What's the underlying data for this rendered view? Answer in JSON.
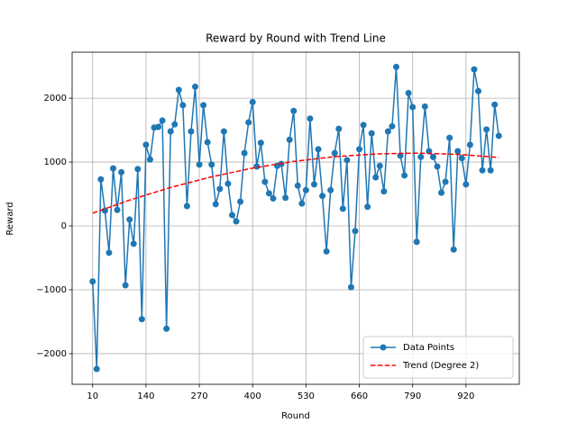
{
  "chart_data": {
    "type": "line",
    "title": "Reward by Round with Trend Line",
    "x_label": "Round",
    "y_label": "Reward",
    "x": [
      10,
      20,
      30,
      40,
      50,
      60,
      70,
      80,
      90,
      100,
      110,
      120,
      130,
      140,
      150,
      160,
      170,
      180,
      190,
      200,
      210,
      220,
      230,
      240,
      250,
      260,
      270,
      280,
      290,
      300,
      310,
      320,
      330,
      340,
      350,
      360,
      370,
      380,
      390,
      400,
      410,
      420,
      430,
      440,
      450,
      460,
      470,
      480,
      490,
      500,
      510,
      520,
      530,
      540,
      550,
      560,
      570,
      580,
      590,
      600,
      610,
      620,
      630,
      640,
      650,
      660,
      670,
      680,
      690,
      700,
      710,
      720,
      730,
      740,
      750,
      760,
      770,
      780,
      790,
      800,
      810,
      820,
      830,
      840,
      850,
      860,
      870,
      880,
      890,
      900,
      910,
      920,
      930,
      940,
      950,
      960,
      970,
      980,
      990,
      1000
    ],
    "series": [
      {
        "name": "Data Points",
        "color": "#1f77b4",
        "marker": "circle",
        "line_style": "solid",
        "values": [
          -870,
          -2240,
          730,
          240,
          -420,
          900,
          250,
          840,
          -930,
          100,
          -280,
          890,
          -1460,
          1270,
          1040,
          1540,
          1550,
          1650,
          -1610,
          1480,
          1590,
          2130,
          1890,
          310,
          1480,
          2180,
          960,
          1890,
          1310,
          960,
          340,
          580,
          1480,
          660,
          170,
          70,
          380,
          1140,
          1620,
          1940,
          930,
          1300,
          690,
          510,
          430,
          940,
          970,
          440,
          1350,
          1800,
          630,
          350,
          560,
          1680,
          650,
          1200,
          470,
          -400,
          560,
          1140,
          1520,
          270,
          1030,
          -960,
          -80,
          1200,
          1580,
          300,
          1450,
          760,
          940,
          540,
          1480,
          1560,
          2490,
          1100,
          790,
          2080,
          1860,
          -250,
          1080,
          1870,
          1170,
          1080,
          930,
          520,
          690,
          1380,
          -370,
          1170,
          1060,
          650,
          1270,
          2450,
          2110,
          870,
          1510,
          870,
          1900,
          1410
        ]
      },
      {
        "name": "Trend (Degree 2)",
        "color": "#ff0000",
        "marker": "none",
        "line_style": "dashed",
        "x": [
          10,
          100,
          200,
          300,
          400,
          500,
          600,
          700,
          800,
          900,
          1000
        ],
        "values": [
          200,
          404,
          602,
          769,
          905,
          1010,
          1084,
          1127,
          1140,
          1121,
          1072
        ]
      }
    ],
    "xlim": [
      -40,
      1050
    ],
    "ylim": [
      -2480,
      2720
    ],
    "xticks": [
      10,
      140,
      270,
      400,
      530,
      660,
      790,
      920
    ],
    "yticks": [
      {
        "value": -2000,
        "label": "−2000"
      },
      {
        "value": -1000,
        "label": "−1000"
      },
      0,
      1000,
      2000
    ],
    "grid": true,
    "legend_position": "lower right"
  }
}
